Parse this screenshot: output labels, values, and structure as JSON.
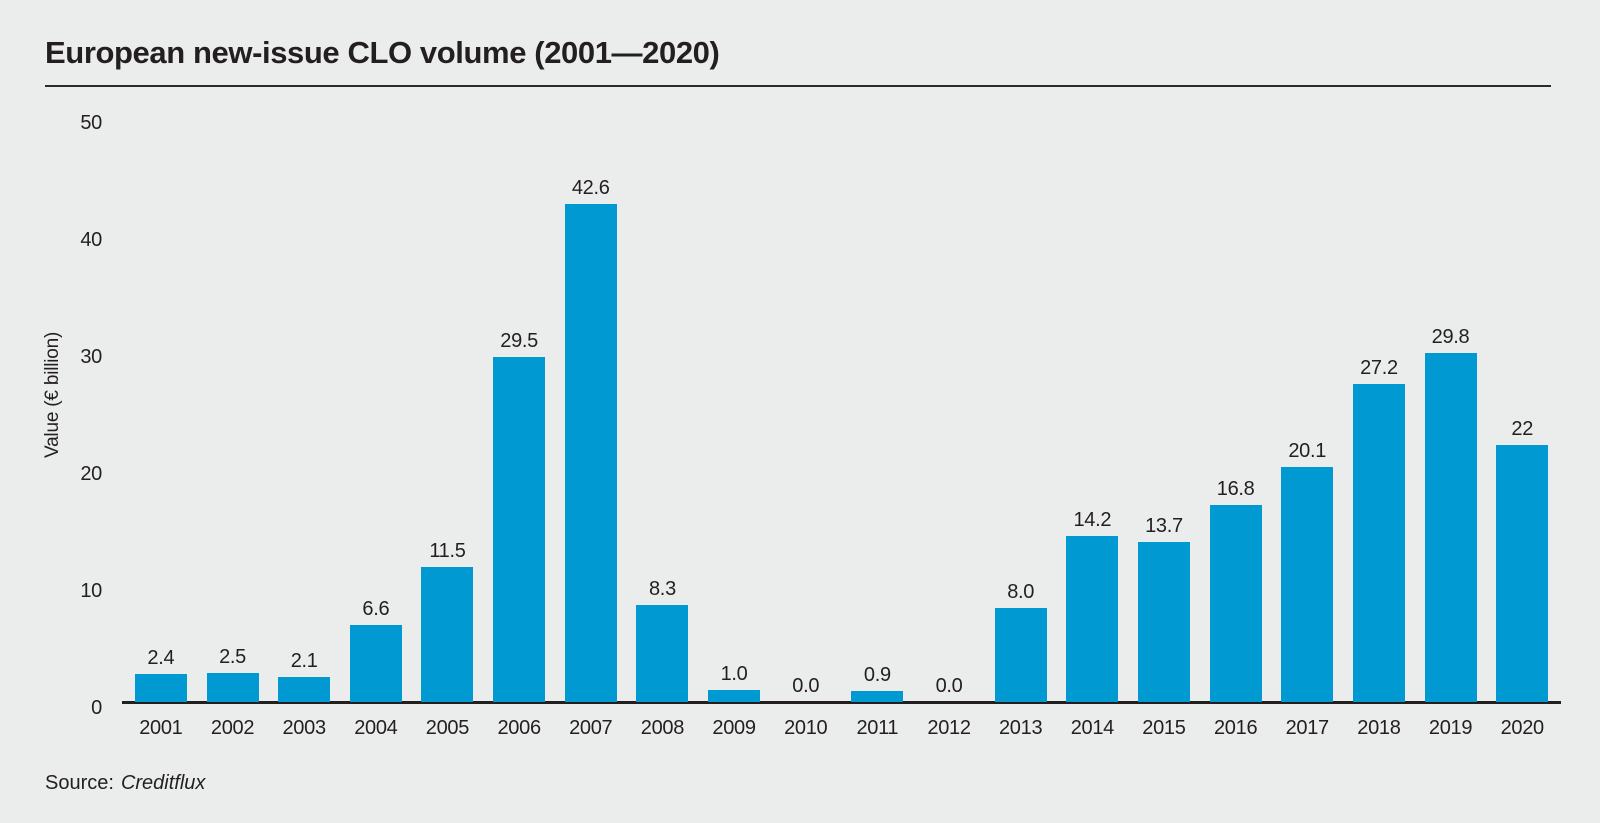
{
  "page": {
    "background_color": "#ebecec",
    "text_color": "#231f20",
    "rule_color": "#2b2b2b",
    "axis_color": "#231f20"
  },
  "chart_data": {
    "type": "bar",
    "title": "European new-issue CLO volume (2001—2020)",
    "ylabel": "Value (€ billion)",
    "xlabel": "",
    "categories": [
      "2001",
      "2002",
      "2003",
      "2004",
      "2005",
      "2006",
      "2007",
      "2008",
      "2009",
      "2010",
      "2011",
      "2012",
      "2013",
      "2014",
      "2015",
      "2016",
      "2017",
      "2018",
      "2019",
      "2020"
    ],
    "values": [
      2.4,
      2.5,
      2.1,
      6.6,
      11.5,
      29.5,
      42.6,
      8.3,
      1.0,
      0.0,
      0.9,
      0.0,
      8.0,
      14.2,
      13.7,
      16.8,
      20.1,
      27.2,
      29.8,
      22
    ],
    "value_labels": [
      "2.4",
      "2.5",
      "2.1",
      "6.6",
      "11.5",
      "29.5",
      "42.6",
      "8.3",
      "1.0",
      "0.0",
      "0.9",
      "0.0",
      "8.0",
      "14.2",
      "13.7",
      "16.8",
      "20.1",
      "27.2",
      "29.8",
      "22"
    ],
    "yticks": [
      0,
      10,
      20,
      30,
      40,
      50
    ],
    "ylim": [
      0,
      50
    ],
    "grid": false,
    "legend": false,
    "bar_color": "#0099d2",
    "source_prefix": "Source:",
    "source_name": "Creditflux"
  }
}
